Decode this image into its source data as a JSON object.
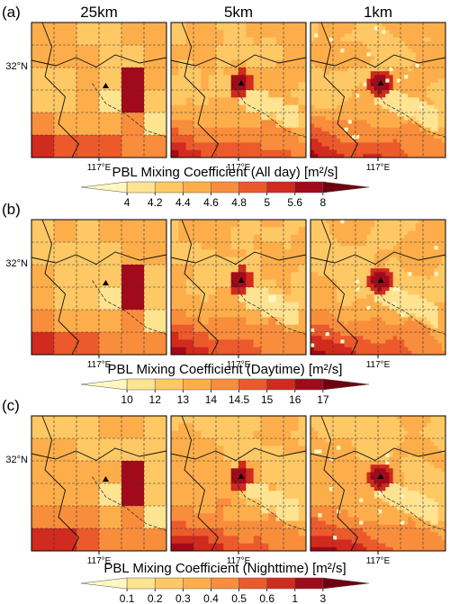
{
  "figure": {
    "column_titles": [
      "25km",
      "5km",
      "1km"
    ],
    "lat_label": "32°N",
    "lon_label": "117°E",
    "site_marker": "triangle-icon"
  },
  "chart_data": [
    {
      "type": "heatmap",
      "panel_label": "(a)",
      "colorbar_title": "PBL Mixing Coefficient (All day) [m²/s]",
      "colorbar_ticks": [
        "4",
        "4.2",
        "4.4",
        "4.6",
        "4.8",
        "5",
        "5.6",
        "8"
      ],
      "colorbar_colors": [
        "#fff7c0",
        "#fee391",
        "#fec865",
        "#fdae4b",
        "#f88d3c",
        "#ec5a2c",
        "#d12a1e",
        "#a10a1a",
        "#6e0010"
      ]
    },
    {
      "type": "heatmap",
      "panel_label": "(b)",
      "colorbar_title": "PBL Mixing Coefficient (Daytime) [m²/s]",
      "colorbar_ticks": [
        "10",
        "12",
        "13",
        "14",
        "14.5",
        "15",
        "16",
        "17"
      ],
      "colorbar_colors": [
        "#fff7c0",
        "#fee391",
        "#fec865",
        "#fdae4b",
        "#f88d3c",
        "#ec5a2c",
        "#d12a1e",
        "#a10a1a",
        "#6e0010"
      ]
    },
    {
      "type": "heatmap",
      "panel_label": "(c)",
      "colorbar_title": "PBL Mixing Coefficient (Nighttime) [m²/s]",
      "colorbar_ticks": [
        "0.1",
        "0.2",
        "0.3",
        "0.4",
        "0.5",
        "0.6",
        "1",
        "3"
      ],
      "colorbar_colors": [
        "#fff7c0",
        "#fee391",
        "#fec865",
        "#fdae4b",
        "#f88d3c",
        "#ec5a2c",
        "#d12a1e",
        "#a10a1a",
        "#6e0010"
      ]
    }
  ]
}
